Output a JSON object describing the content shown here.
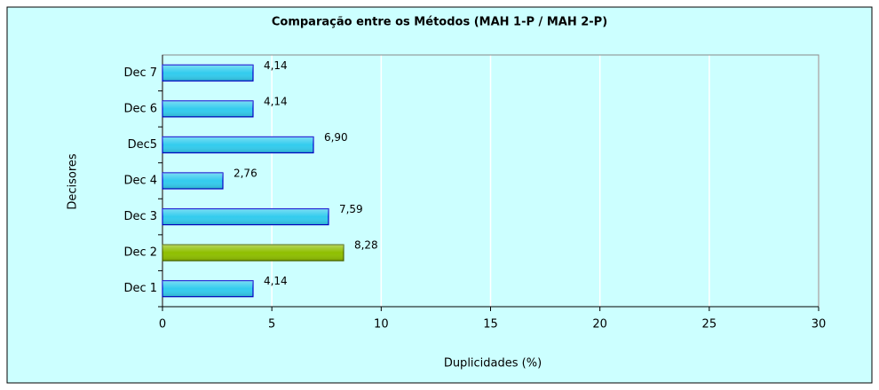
{
  "chart_data": {
    "type": "bar",
    "orientation": "horizontal",
    "title": "Comparação entre os Métodos (MAH 1-P / MAH 2-P)",
    "x_label": "Duplicidades (%)",
    "y_label": "Decisores",
    "categories": [
      "Dec 1",
      "Dec 2",
      "Dec 3",
      "Dec 4",
      "Dec5",
      "Dec 6",
      "Dec 7"
    ],
    "values": [
      4.14,
      8.28,
      7.59,
      2.76,
      6.9,
      4.14,
      4.14
    ],
    "value_labels": [
      "4,14",
      "8,28",
      "7,59",
      "2,76",
      "6,90",
      "4,14",
      "4,14"
    ],
    "colors": [
      "#33ccee",
      "#8fbf00",
      "#33ccee",
      "#33ccee",
      "#33ccee",
      "#33ccee",
      "#33ccee"
    ],
    "xlim": [
      0,
      30
    ],
    "xticks": [
      0,
      5,
      10,
      15,
      20,
      25,
      30
    ],
    "grid": true
  }
}
